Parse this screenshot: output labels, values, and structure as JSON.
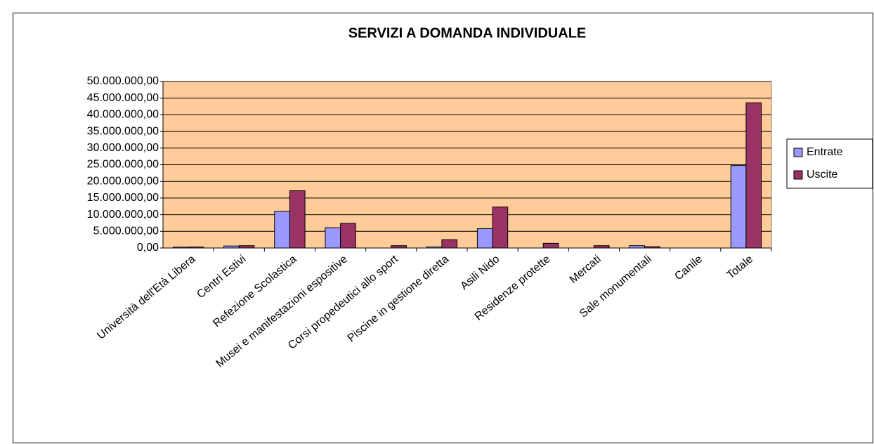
{
  "chart_data": {
    "type": "bar",
    "title": "SERVIZI A DOMANDA INDIVIDUALE",
    "categories": [
      "Università dell'Età Libera",
      "Centri Estivi",
      "Refezione Scolastica",
      "Musei e manifestazioni espositive",
      "Corsi propedeutici allo sport",
      "Piscine in gestione diretta",
      "Asili Nido",
      "Residenze protette",
      "Mercati",
      "Sale monumentali",
      "Canile",
      "Totale"
    ],
    "series": [
      {
        "name": "Entrate",
        "color": "#9999ff",
        "values": [
          250000,
          600000,
          11000000,
          6100000,
          0,
          300000,
          5800000,
          0,
          0,
          700000,
          0,
          24750000
        ]
      },
      {
        "name": "Uscite",
        "color": "#993366",
        "values": [
          300000,
          700000,
          17200000,
          7400000,
          700000,
          2500000,
          12300000,
          1400000,
          700000,
          400000,
          0,
          43600000
        ]
      }
    ],
    "ylim": [
      0,
      50000000
    ],
    "yticks": [
      {
        "value": 0,
        "label": "0,00"
      },
      {
        "value": 5000000,
        "label": "5.000.000,00"
      },
      {
        "value": 10000000,
        "label": "10.000.000,00"
      },
      {
        "value": 15000000,
        "label": "15.000.000,00"
      },
      {
        "value": 20000000,
        "label": "20.000.000,00"
      },
      {
        "value": 25000000,
        "label": "25.000.000,00"
      },
      {
        "value": 30000000,
        "label": "30.000.000,00"
      },
      {
        "value": 35000000,
        "label": "35.000.000,00"
      },
      {
        "value": 40000000,
        "label": "40.000.000,00"
      },
      {
        "value": 45000000,
        "label": "45.000.000,00"
      },
      {
        "value": 50000000,
        "label": "50.000.000,00"
      }
    ],
    "grid": true,
    "background": "#ffcc99",
    "legend": "right"
  }
}
